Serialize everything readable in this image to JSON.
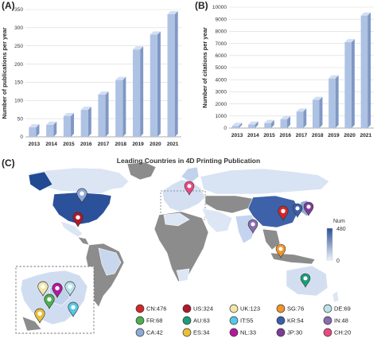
{
  "panels": {
    "a": "(A)",
    "b": "(B)",
    "c": "(C)"
  },
  "colors": {
    "bar": "#aec2e4",
    "bar_side": "#7f98c4",
    "bar_top": "#d3def2",
    "grid": "#d9d9d9",
    "water": "#ffffff",
    "no_data": "#8c8c8c"
  },
  "chart_data": [
    {
      "type": "bar",
      "categories": [
        "2013",
        "2014",
        "2015",
        "2016",
        "2017",
        "2018",
        "2019",
        "2020",
        "2021"
      ],
      "values": [
        26,
        33,
        57,
        74,
        116,
        156,
        240,
        281,
        337
      ],
      "ylabel": "Number of publications per year",
      "xlabel": "",
      "ylim": [
        0,
        350
      ],
      "yticks": [
        0,
        50,
        100,
        150,
        200,
        250,
        300,
        350
      ],
      "grid": true
    },
    {
      "type": "bar",
      "categories": [
        "2013",
        "2014",
        "2015",
        "2016",
        "2017",
        "2018",
        "2019",
        "2020",
        "2021"
      ],
      "values": [
        180,
        290,
        410,
        720,
        1360,
        2330,
        4100,
        7100,
        9300
      ],
      "ylabel": "Number of citations per year",
      "xlabel": "",
      "ylim": [
        0,
        10000
      ],
      "yticks": [
        0,
        1000,
        2000,
        3000,
        4000,
        5000,
        6000,
        7000,
        8000,
        9000,
        10000
      ],
      "grid": true
    },
    {
      "type": "heatmap",
      "title": "Leading Countries in 4D Printing Publication",
      "colorbar": {
        "label": "Num",
        "min": 0,
        "max": 480,
        "color_low": "#eef3fb",
        "color_high": "#2a4f96"
      },
      "legend_items": [
        {
          "code": "CN",
          "value": 476,
          "color": "#d62728"
        },
        {
          "code": "US",
          "value": 324,
          "color": "#b2182b"
        },
        {
          "code": "UK",
          "value": 123,
          "color": "#f3e7a8"
        },
        {
          "code": "SG",
          "value": 76,
          "color": "#f0962a"
        },
        {
          "code": "DE",
          "value": 69,
          "color": "#b9e3ea"
        },
        {
          "code": "FR",
          "value": 68,
          "color": "#4caf50"
        },
        {
          "code": "AU",
          "value": 63,
          "color": "#1b9e77"
        },
        {
          "code": "IT",
          "value": 55,
          "color": "#56c9e8"
        },
        {
          "code": "KR",
          "value": 54,
          "color": "#3a5fa8"
        },
        {
          "code": "IN",
          "value": 48,
          "color": "#8a6bb0"
        },
        {
          "code": "CA",
          "value": 42,
          "color": "#8faad8"
        },
        {
          "code": "ES",
          "value": 34,
          "color": "#e8bf3a"
        },
        {
          "code": "NL",
          "value": 33,
          "color": "#b5179e"
        },
        {
          "code": "JP",
          "value": 30,
          "color": "#7d3c98"
        },
        {
          "code": "CH",
          "value": 20,
          "color": "#e84a7f"
        }
      ]
    }
  ]
}
